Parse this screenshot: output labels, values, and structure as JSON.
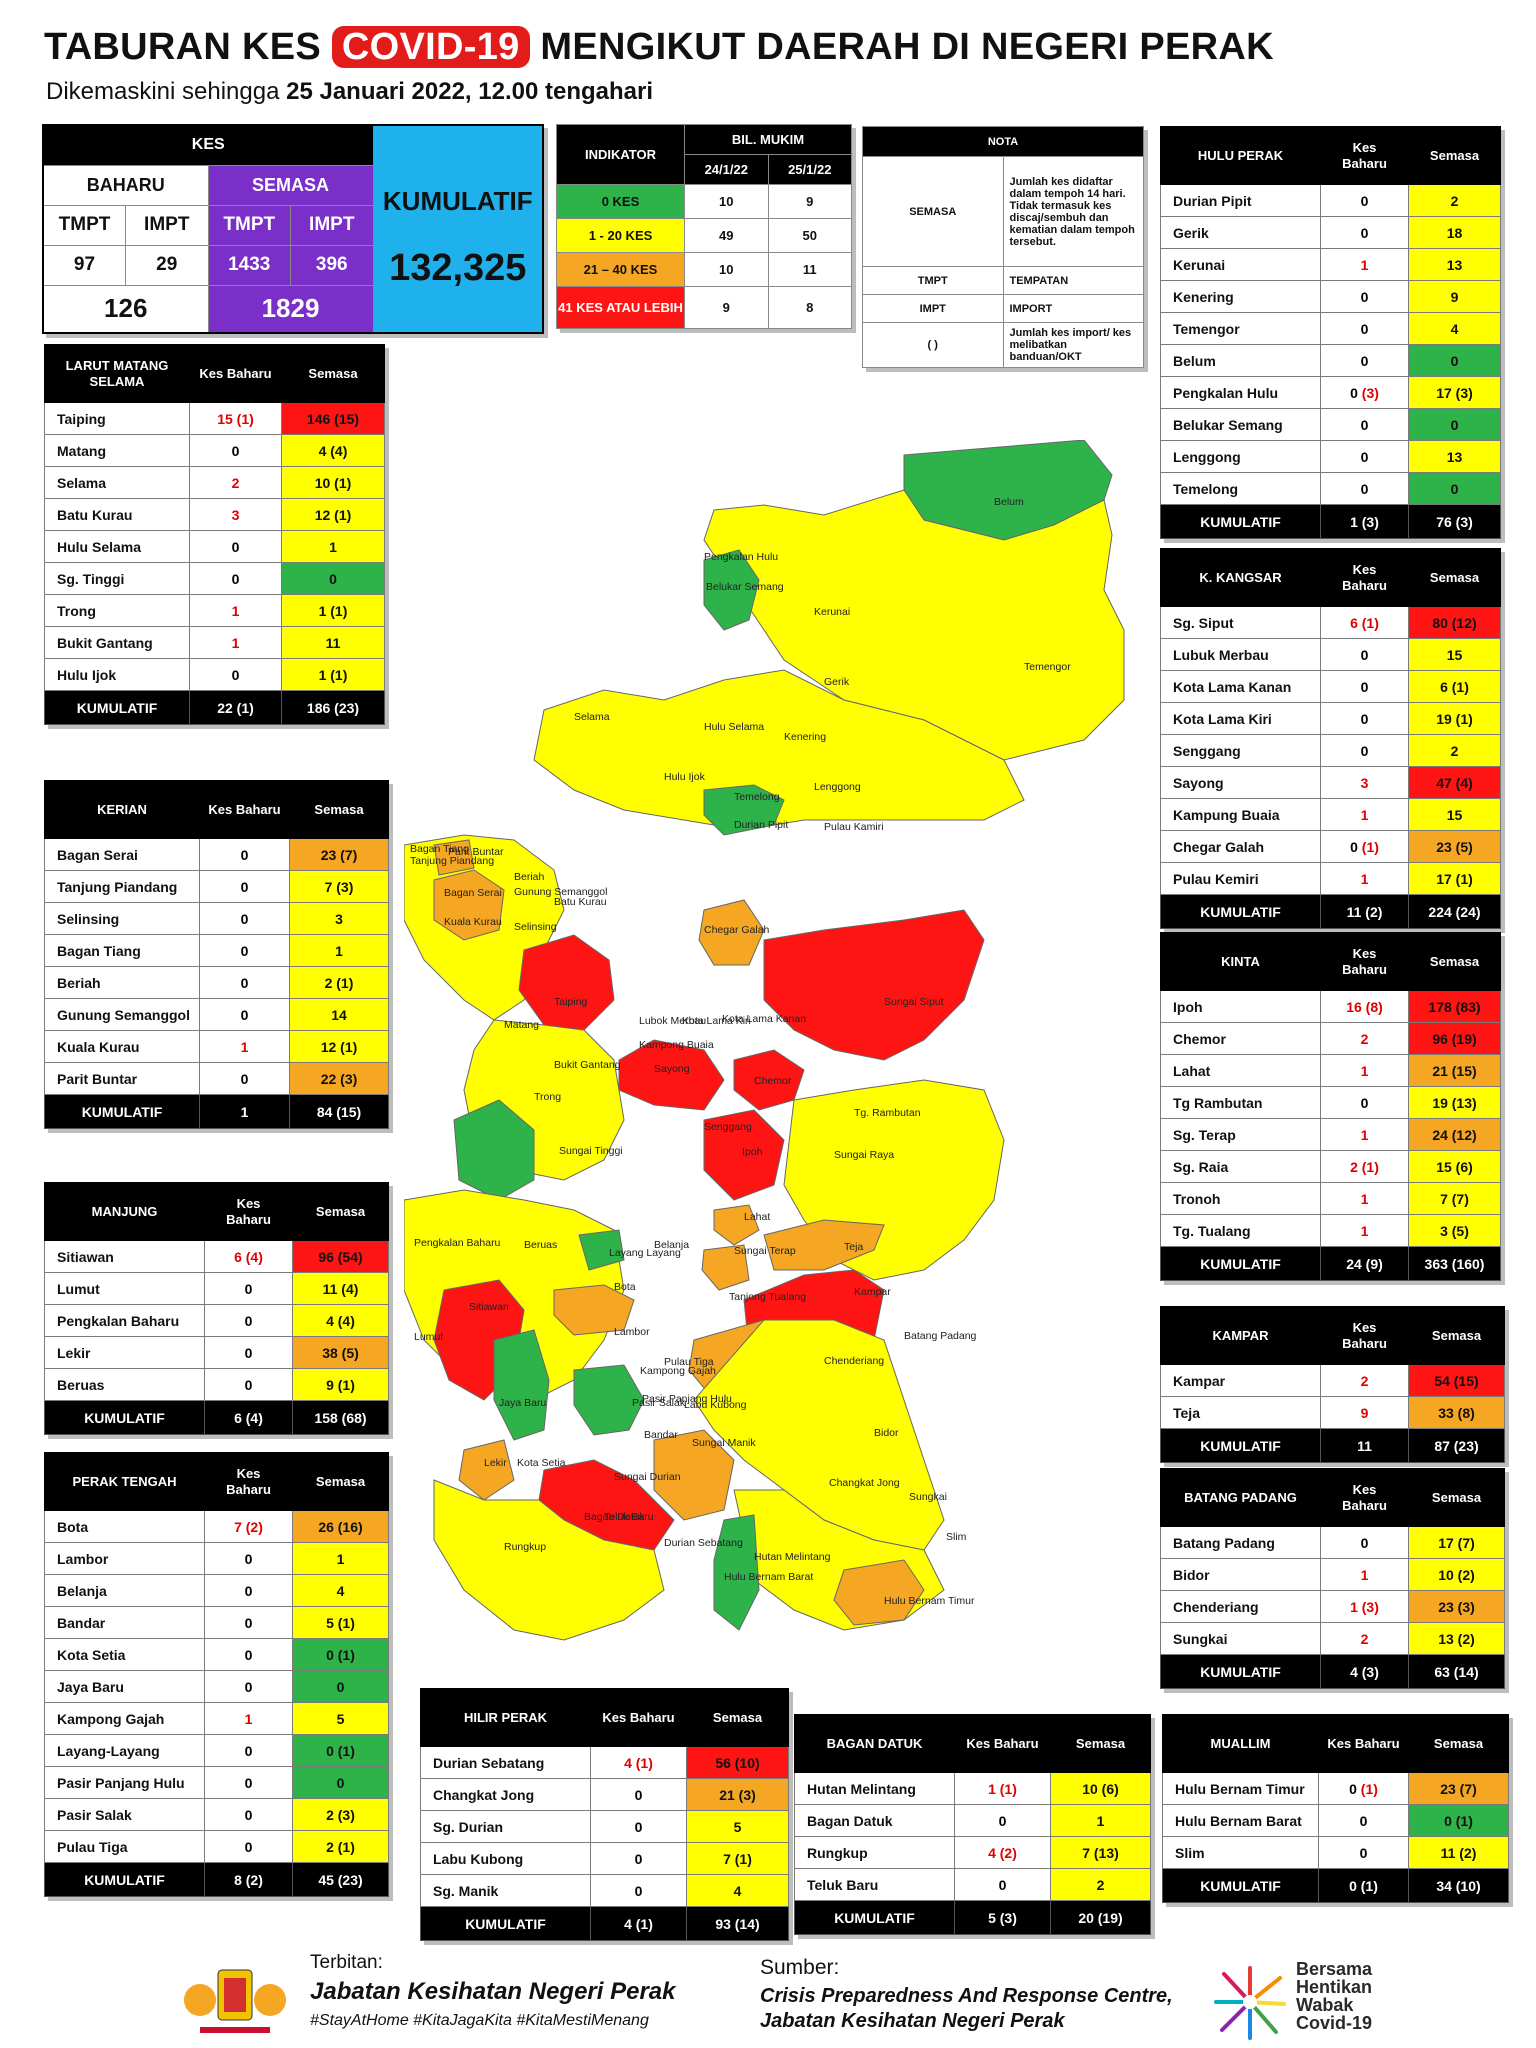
{
  "header": {
    "title_a": "TABURAN KES ",
    "title_covid": "COVID-19",
    "title_b": " MENGIKUT DAERAH DI NEGERI PERAK",
    "sub_a": "Dikemaskini sehingga ",
    "sub_b": "25 Januari 2022, 12.00 tengahari"
  },
  "kes": {
    "title": "KES",
    "baharu": "BAHARU",
    "semasa": "SEMASA",
    "tmpt": "TMPT",
    "impt": "IMPT",
    "kumulatif": "KUMULATIF",
    "b_tmpt": "97",
    "b_impt": "29",
    "s_tmpt": "1433",
    "s_impt": "396",
    "b_total": "126",
    "s_total": "1829",
    "kum_total": "132,325"
  },
  "indikator": {
    "title": "INDIKATOR",
    "bil": "BIL. MUKIM",
    "d1": "24/1/22",
    "d2": "25/1/22",
    "rows": [
      {
        "label": "0 KES",
        "a": "10",
        "b": "9"
      },
      {
        "label": "1 - 20 KES",
        "a": "49",
        "b": "50"
      },
      {
        "label": "21 – 40 KES",
        "a": "10",
        "b": "11"
      },
      {
        "label": "41 KES ATAU LEBIH",
        "a": "9",
        "b": "8"
      }
    ],
    "colors": [
      "#2eb34a",
      "#ffff00",
      "#f5a623",
      "#ff1414"
    ]
  },
  "nota": {
    "title": "NOTA",
    "semasa": "SEMASA",
    "semasa_desc": "Jumlah kes didaftar dalam tempoh 14 hari. Tidak termasuk kes discaj/sembuh dan kematian dalam tempoh tersebut.",
    "tmpt": "TMPT",
    "tmpt_desc": "TEMPATAN",
    "impt": "IMPT",
    "impt_desc": "IMPORT",
    "par": "(   )",
    "par_desc": "Jumlah kes import/ kes melibatkan banduan/OKT"
  },
  "col_kes": "Kes Baharu",
  "col_semasa": "Semasa",
  "kum_label": "KUMULATIF",
  "tables": [
    {
      "name": "LARUT MATANG SELAMA",
      "kum_b": "22 (1)",
      "kum_s": "186 (23)",
      "rows": [
        [
          "Taiping",
          "15 (1)",
          "146 (15)",
          "rd",
          1
        ],
        [
          "Matang",
          "0",
          "4 (4)",
          "y",
          0
        ],
        [
          "Selama",
          "2",
          "10 (1)",
          "y",
          1
        ],
        [
          "Batu Kurau",
          "3",
          "12 (1)",
          "y",
          1
        ],
        [
          "Hulu Selama",
          "0",
          "1",
          "y",
          0
        ],
        [
          "Sg. Tinggi",
          "0",
          "0",
          "g",
          0
        ],
        [
          "Trong",
          "1",
          "1 (1)",
          "y",
          1
        ],
        [
          "Bukit Gantang",
          "1",
          "11",
          "y",
          1
        ],
        [
          "Hulu Ijok",
          "0",
          "1 (1)",
          "y",
          0
        ]
      ]
    },
    {
      "name": "KERIAN",
      "kum_b": "1",
      "kum_s": "84 (15)",
      "rows": [
        [
          "Bagan Serai",
          "0",
          "23 (7)",
          "o",
          0
        ],
        [
          "Tanjung Piandang",
          "0",
          "7 (3)",
          "y",
          0
        ],
        [
          "Selinsing",
          "0",
          "3",
          "y",
          0
        ],
        [
          "Bagan Tiang",
          "0",
          "1",
          "y",
          0
        ],
        [
          "Beriah",
          "0",
          "2 (1)",
          "y",
          0
        ],
        [
          "Gunung Semanggol",
          "0",
          "14",
          "y",
          0
        ],
        [
          "Kuala Kurau",
          "1",
          "12 (1)",
          "y",
          1
        ],
        [
          "Parit Buntar",
          "0",
          "22 (3)",
          "o",
          0
        ]
      ]
    },
    {
      "name": "MANJUNG",
      "kum_b": "6 (4)",
      "kum_s": "158 (68)",
      "rows": [
        [
          "Sitiawan",
          "6 (4)",
          "96 (54)",
          "rd",
          1
        ],
        [
          "Lumut",
          "0",
          "11 (4)",
          "y",
          0
        ],
        [
          "Pengkalan Baharu",
          "0",
          "4 (4)",
          "y",
          0
        ],
        [
          "Lekir",
          "0",
          "38 (5)",
          "o",
          0
        ],
        [
          "Beruas",
          "0",
          "9 (1)",
          "y",
          0
        ]
      ]
    },
    {
      "name": "PERAK TENGAH",
      "kum_b": "8 (2)",
      "kum_s": "45 (23)",
      "rows": [
        [
          "Bota",
          "7 (2)",
          "26 (16)",
          "o",
          1
        ],
        [
          "Lambor",
          "0",
          "1",
          "y",
          0
        ],
        [
          "Belanja",
          "0",
          "4",
          "y",
          0
        ],
        [
          "Bandar",
          "0",
          "5 (1)",
          "y",
          0
        ],
        [
          "Kota Setia",
          "0",
          "0 (1)",
          "g",
          0
        ],
        [
          "Jaya Baru",
          "0",
          "0",
          "g",
          0
        ],
        [
          "Kampong Gajah",
          "1",
          "5",
          "y",
          1
        ],
        [
          "Layang-Layang",
          "0",
          "0 (1)",
          "g",
          0
        ],
        [
          "Pasir Panjang Hulu",
          "0",
          "0",
          "g",
          0
        ],
        [
          "Pasir Salak",
          "0",
          "2 (3)",
          "y",
          0
        ],
        [
          "Pulau Tiga",
          "0",
          "2 (1)",
          "y",
          0
        ]
      ]
    },
    {
      "name": "HULU PERAK",
      "kum_b": "1 (3)",
      "kum_s": "76 (3)",
      "rows": [
        [
          "Durian Pipit",
          "0",
          "2",
          "y",
          0
        ],
        [
          "Gerik",
          "0",
          "18",
          "y",
          0
        ],
        [
          "Kerunai",
          "1",
          "13",
          "y",
          1
        ],
        [
          "Kenering",
          "0",
          "9",
          "y",
          0
        ],
        [
          "Temengor",
          "0",
          "4",
          "y",
          0
        ],
        [
          "Belum",
          "0",
          "0",
          "g",
          0
        ],
        [
          "Pengkalan Hulu",
          "0 (3)",
          "17 (3)",
          "y",
          2
        ],
        [
          "Belukar Semang",
          "0",
          "0",
          "g",
          0
        ],
        [
          "Lenggong",
          "0",
          "13",
          "y",
          0
        ],
        [
          "Temelong",
          "0",
          "0",
          "g",
          0
        ]
      ]
    },
    {
      "name": "K. KANGSAR",
      "kum_b": "11 (2)",
      "kum_s": "224 (24)",
      "rows": [
        [
          "Sg. Siput",
          "6 (1)",
          "80 (12)",
          "rd",
          1
        ],
        [
          "Lubuk Merbau",
          "0",
          "15",
          "y",
          0
        ],
        [
          "Kota Lama Kanan",
          "0",
          "6 (1)",
          "y",
          0
        ],
        [
          "Kota Lama Kiri",
          "0",
          "19 (1)",
          "y",
          0
        ],
        [
          "Senggang",
          "0",
          "2",
          "y",
          0
        ],
        [
          "Sayong",
          "3",
          "47 (4)",
          "rd",
          1
        ],
        [
          "Kampung Buaia",
          "1",
          "15",
          "y",
          1
        ],
        [
          "Chegar Galah",
          "0 (1)",
          "23 (5)",
          "o",
          2
        ],
        [
          "Pulau Kemiri",
          "1",
          "17 (1)",
          "y",
          1
        ]
      ]
    },
    {
      "name": "KINTA",
      "kum_b": "24 (9)",
      "kum_s": "363 (160)",
      "rows": [
        [
          "Ipoh",
          "16 (8)",
          "178 (83)",
          "rd",
          1
        ],
        [
          "Chemor",
          "2",
          "96 (19)",
          "rd",
          1
        ],
        [
          "Lahat",
          "1",
          "21 (15)",
          "o",
          1
        ],
        [
          "Tg Rambutan",
          "0",
          "19 (13)",
          "y",
          0
        ],
        [
          "Sg. Terap",
          "1",
          "24 (12)",
          "o",
          1
        ],
        [
          "Sg. Raia",
          "2 (1)",
          "15 (6)",
          "y",
          1
        ],
        [
          "Tronoh",
          "1",
          "7 (7)",
          "y",
          1
        ],
        [
          "Tg. Tualang",
          "1",
          "3 (5)",
          "y",
          1
        ]
      ]
    },
    {
      "name": "KAMPAR",
      "kum_b": "11",
      "kum_s": "87 (23)",
      "rows": [
        [
          "Kampar",
          "2",
          "54 (15)",
          "rd",
          1
        ],
        [
          "Teja",
          "9",
          "33 (8)",
          "o",
          1
        ]
      ]
    },
    {
      "name": "BATANG PADANG",
      "kum_b": "4 (3)",
      "kum_s": "63 (14)",
      "rows": [
        [
          "Batang Padang",
          "0",
          "17 (7)",
          "y",
          0
        ],
        [
          "Bidor",
          "1",
          "10 (2)",
          "y",
          1
        ],
        [
          "Chenderiang",
          "1 (3)",
          "23 (3)",
          "o",
          1
        ],
        [
          "Sungkai",
          "2",
          "13 (2)",
          "y",
          1
        ]
      ]
    },
    {
      "name": "HILIR PERAK",
      "kum_b": "4 (1)",
      "kum_s": "93 (14)",
      "rows": [
        [
          "Durian Sebatang",
          "4 (1)",
          "56 (10)",
          "rd",
          1
        ],
        [
          "Changkat Jong",
          "0",
          "21 (3)",
          "o",
          0
        ],
        [
          "Sg. Durian",
          "0",
          "5",
          "y",
          0
        ],
        [
          "Labu Kubong",
          "0",
          "7 (1)",
          "y",
          0
        ],
        [
          "Sg. Manik",
          "0",
          "4",
          "y",
          0
        ]
      ]
    },
    {
      "name": "BAGAN DATUK",
      "kum_b": "5 (3)",
      "kum_s": "20 (19)",
      "rows": [
        [
          "Hutan Melintang",
          "1 (1)",
          "10 (6)",
          "y",
          1
        ],
        [
          "Bagan Datuk",
          "0",
          "1",
          "y",
          0
        ],
        [
          "Rungkup",
          "4 (2)",
          "7 (13)",
          "y",
          1
        ],
        [
          "Teluk Baru",
          "0",
          "2",
          "y",
          0
        ]
      ]
    },
    {
      "name": "MUALLIM",
      "kum_b": "0 (1)",
      "kum_s": "34 (10)",
      "rows": [
        [
          "Hulu Bernam Timur",
          "0 (1)",
          "23 (7)",
          "o",
          2
        ],
        [
          "Hulu Bernam Barat",
          "0",
          "0 (1)",
          "g",
          0
        ],
        [
          "Slim",
          "0",
          "11 (2)",
          "y",
          0
        ]
      ]
    }
  ],
  "map_labels": [
    "Belum",
    "Pengkalan Hulu",
    "Belukar Semang",
    "Kerunai",
    "Gerik",
    "Temengor",
    "Hulu Selama",
    "Kenering",
    "Selama",
    "Hulu Ijok",
    "Lenggong",
    "Temelong",
    "Durian Pipit",
    "Pulau Kamiri",
    "Bagan Tiang",
    "Parit Buntar",
    "Tanjung Piandang",
    "Bagan Serai",
    "Beriah",
    "Gunung Semanggol",
    "Kuala Kurau",
    "Selinsing",
    "Batu Kurau",
    "Taiping",
    "Chegar Galah",
    "Sungai Siput",
    "Matang",
    "Lubok Merbau",
    "Kota Lama Kiri",
    "Kota Lama Kanan",
    "Kampong Buaia",
    "Sayong",
    "Chemor",
    "Bukit Gantang",
    "Trong",
    "Tg. Rambutan",
    "Sungai Tinggi",
    "Senggang",
    "Ipoh",
    "Lahat",
    "Sungai Raya",
    "Sungai Terap",
    "Teja",
    "Pengkalan Baharu",
    "Beruas",
    "Belanja",
    "Layang Layang",
    "Bota",
    "Kampar",
    "Tanjong Tualang",
    "Sitiawan",
    "Lumut",
    "Lambor",
    "Chenderiang",
    "Batang Padang",
    "Pulau Tiga",
    "Kampong Gajah",
    "Pasir Panjang Hulu",
    "Jaya Baru",
    "Pasir Salak",
    "Labu Kubong",
    "Bidor",
    "Bandar",
    "Lekir",
    "Kota Setia",
    "Sungai Manik",
    "Sungai Durian",
    "Changkat Jong",
    "Bagan Datuk",
    "Teluk Baru",
    "Durian Sebatang",
    "Rungkup",
    "Sungkai",
    "Hutan Melintang",
    "Slim",
    "Hulu Bernam Timur",
    "Hulu Bernam Barat"
  ],
  "footer": {
    "terbitan": "Terbitan:",
    "jkn": "Jabatan Kesihatan Negeri Perak",
    "tags": "#StayAtHome #KitaJagaKita #KitaMestiMenang",
    "sumber": "Sumber:",
    "cprc1": "Crisis Preparedness And Response Centre,",
    "cprc2": "Jabatan Kesihatan Negeri Perak",
    "bersama1": "Bersama",
    "bersama2": "Hentikan",
    "bersama3": "Wabak",
    "bersama4": "Covid-19"
  }
}
